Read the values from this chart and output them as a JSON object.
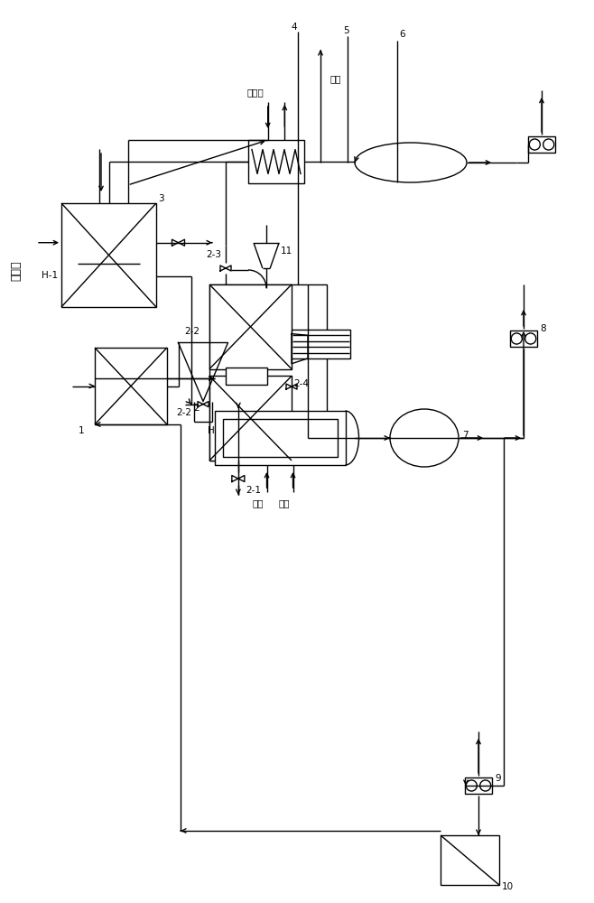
{
  "bg_color": "#ffffff",
  "lw": 1.0,
  "labels": {
    "cooling_water_vertical": "冷却水",
    "cooling_water_top": "冷却水",
    "vacuum": "真空",
    "hot_medium1": "热媒",
    "hot_medium2": "热媒",
    "comp1": "1",
    "comp2": "2",
    "comp2_1": "2-1",
    "comp2_2": "2-2",
    "comp2_3": "2-3",
    "comp2_4": "2-4",
    "comp3": "3",
    "comp4": "4",
    "comp5": "5",
    "comp6": "6",
    "comp7": "7",
    "comp8": "8",
    "comp9": "9",
    "comp10": "10",
    "comp11": "11",
    "compH": "H",
    "compH1": "H-1"
  }
}
